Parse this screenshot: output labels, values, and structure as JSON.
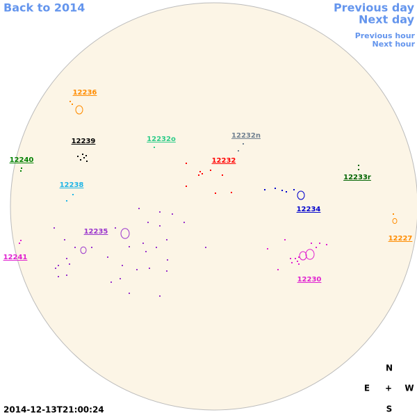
{
  "nav": {
    "back": "Back to 2014",
    "prev_day": "Previous day",
    "next_day": "Next day",
    "prev_hour": "Previous hour",
    "next_hour": "Next hour"
  },
  "regions": [
    {
      "label": "12236",
      "color": "#ff8c00"
    },
    {
      "label": "12239",
      "color": "#000000"
    },
    {
      "label": "12240",
      "color": "#008000"
    },
    {
      "label": "12232o",
      "color": "#2ecc88"
    },
    {
      "label": "12232n",
      "color": "#708090"
    },
    {
      "label": "12232",
      "color": "#ff0000"
    },
    {
      "label": "12233r",
      "color": "#006400"
    },
    {
      "label": "12238",
      "color": "#1eb4e6"
    },
    {
      "label": "12234",
      "color": "#0000cd"
    },
    {
      "label": "12235",
      "color": "#9932cc"
    },
    {
      "label": "12227",
      "color": "#ff8c00"
    },
    {
      "label": "12241",
      "color": "#e020d0"
    },
    {
      "label": "12230",
      "color": "#e020d0"
    }
  ],
  "compass": {
    "north": "N",
    "south": "S",
    "east": "E",
    "west": "W",
    "center": "+"
  },
  "timestamp": "2014-12-13T21:00:24"
}
